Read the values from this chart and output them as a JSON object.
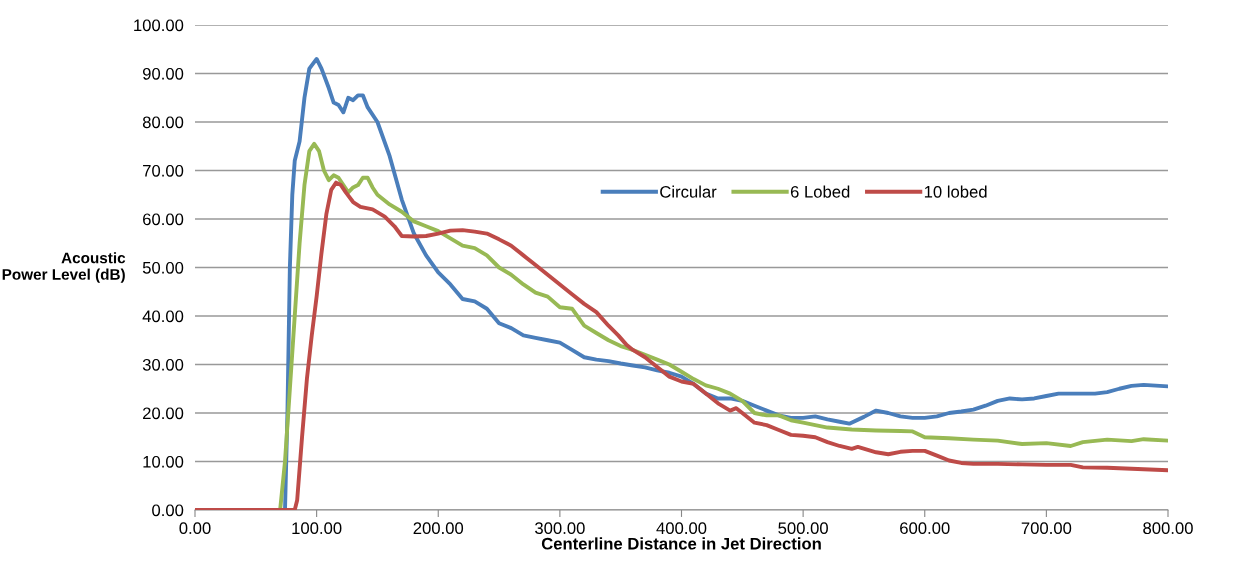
{
  "chart_data": {
    "type": "line",
    "xlabel": "Centerline Distance in Jet Direction",
    "ylabel": "Acoustic\nPower Level (dB)",
    "xlim": [
      0,
      800
    ],
    "ylim": [
      0,
      100
    ],
    "xticks": [
      {
        "value": 0,
        "label": "0.00"
      },
      {
        "value": 100,
        "label": "100.00"
      },
      {
        "value": 200,
        "label": "200.00"
      },
      {
        "value": 300,
        "label": "300.00"
      },
      {
        "value": 400,
        "label": "400.00"
      },
      {
        "value": 500,
        "label": "500.00"
      },
      {
        "value": 600,
        "label": "600.00"
      },
      {
        "value": 700,
        "label": "700.00"
      },
      {
        "value": 800,
        "label": "800.00"
      }
    ],
    "yticks": [
      {
        "value": 0,
        "label": "0.00"
      },
      {
        "value": 10,
        "label": "10.00"
      },
      {
        "value": 20,
        "label": "20.00"
      },
      {
        "value": 30,
        "label": "30.00"
      },
      {
        "value": 40,
        "label": "40.00"
      },
      {
        "value": 50,
        "label": "50.00"
      },
      {
        "value": 60,
        "label": "60.00"
      },
      {
        "value": 70,
        "label": "70.00"
      },
      {
        "value": 80,
        "label": "80.00"
      },
      {
        "value": 90,
        "label": "90.00"
      },
      {
        "value": 100,
        "label": "100.00"
      }
    ],
    "grid": "y",
    "legend": "top right",
    "marker": "none",
    "line_style": "solid",
    "series": [
      {
        "name": "Circular",
        "color": "#4a7ebb",
        "x": [
          0,
          74,
          76,
          78,
          80,
          82,
          86,
          90,
          94,
          100,
          104,
          110,
          114,
          118,
          122,
          126,
          130,
          134,
          138,
          142,
          150,
          160,
          170,
          180,
          190,
          200,
          210,
          220,
          230,
          240,
          250,
          260,
          270,
          280,
          290,
          300,
          310,
          320,
          330,
          340,
          350,
          360,
          370,
          380,
          390,
          400,
          410,
          420,
          430,
          440,
          450,
          460,
          470,
          480,
          490,
          500,
          510,
          520,
          530,
          538,
          550,
          560,
          570,
          580,
          590,
          600,
          610,
          620,
          630,
          640,
          650,
          660,
          670,
          680,
          690,
          700,
          710,
          720,
          730,
          740,
          750,
          760,
          770,
          780,
          800
        ],
        "values": [
          0,
          0,
          20,
          50,
          65,
          72,
          76,
          85,
          91,
          93,
          91,
          87,
          84,
          83.5,
          82,
          85,
          84.5,
          85.5,
          85.5,
          83,
          80,
          73,
          64,
          57,
          52.5,
          49,
          46.5,
          43.5,
          43,
          41.5,
          38.5,
          37.5,
          36,
          35.5,
          35,
          34.5,
          33,
          31.5,
          31,
          30.7,
          30.2,
          29.8,
          29.4,
          28.8,
          28.3,
          27.5,
          26,
          24,
          23,
          23,
          22.5,
          21.5,
          20.5,
          19.5,
          19,
          19,
          19.3,
          18.7,
          18.2,
          17.8,
          19.2,
          20.5,
          20,
          19.3,
          19,
          19,
          19.3,
          20,
          20.3,
          20.7,
          21.5,
          22.5,
          23,
          22.8,
          23,
          23.5,
          24,
          24,
          24,
          24,
          24.3,
          25,
          25.6,
          25.8,
          25.5
        ]
      },
      {
        "name": "6 Lobed",
        "color": "#98b954",
        "x": [
          0,
          70,
          74,
          78,
          82,
          86,
          90,
          94,
          98,
          102,
          106,
          110,
          114,
          118,
          122,
          126,
          130,
          134,
          138,
          142,
          146,
          150,
          160,
          170,
          180,
          190,
          200,
          210,
          220,
          230,
          240,
          250,
          260,
          270,
          280,
          290,
          300,
          310,
          320,
          330,
          340,
          350,
          360,
          370,
          380,
          390,
          400,
          410,
          420,
          430,
          440,
          450,
          460,
          470,
          480,
          490,
          500,
          510,
          520,
          530,
          540,
          560,
          580,
          590,
          600,
          620,
          640,
          660,
          680,
          700,
          720,
          730,
          750,
          770,
          780,
          800
        ],
        "values": [
          0,
          0,
          10,
          25,
          40,
          55,
          67,
          74,
          75.5,
          74,
          70,
          68,
          69,
          68.5,
          67,
          65.5,
          66.5,
          67,
          68.5,
          68.5,
          66.5,
          65,
          63,
          61.5,
          59.5,
          58.5,
          57.5,
          56,
          54.5,
          54,
          52.5,
          50,
          48.5,
          46.5,
          44.8,
          44,
          41.8,
          41.5,
          38,
          36.5,
          35,
          33.8,
          33,
          32,
          31,
          30,
          28.5,
          27,
          25.7,
          25,
          24,
          22.5,
          20,
          19.5,
          19.5,
          18.5,
          18,
          17.5,
          17,
          16.8,
          16.6,
          16.4,
          16.3,
          16.2,
          15,
          14.8,
          14.5,
          14.3,
          13.6,
          13.8,
          13.2,
          14,
          14.5,
          14.2,
          14.6,
          14.3
        ]
      },
      {
        "name": "10 lobed",
        "color": "#be4b48",
        "x": [
          0,
          82,
          84,
          88,
          92,
          96,
          100,
          104,
          108,
          112,
          116,
          120,
          124,
          130,
          136,
          146,
          156,
          164,
          170,
          180,
          190,
          200,
          210,
          220,
          230,
          240,
          250,
          260,
          270,
          280,
          290,
          300,
          310,
          320,
          330,
          340,
          348,
          355,
          360,
          370,
          380,
          390,
          400,
          410,
          420,
          430,
          440,
          445,
          450,
          460,
          470,
          480,
          490,
          500,
          510,
          520,
          530,
          540,
          545,
          560,
          570,
          580,
          590,
          600,
          610,
          620,
          630,
          640,
          660,
          680,
          700,
          720,
          730,
          750,
          770,
          800
        ],
        "values": [
          0,
          0,
          2,
          15,
          27,
          36,
          44,
          53,
          61,
          66,
          67.5,
          67,
          65.5,
          63.5,
          62.5,
          62,
          60.5,
          58.5,
          56.5,
          56.4,
          56.5,
          57,
          57.6,
          57.7,
          57.4,
          57,
          55.8,
          54.5,
          52.5,
          50.5,
          48.5,
          46.5,
          44.5,
          42.5,
          40.8,
          38,
          36,
          34,
          33,
          31.5,
          29.5,
          27.5,
          26.5,
          26,
          24,
          22,
          20.5,
          21,
          20,
          18,
          17.5,
          16.5,
          15.5,
          15.3,
          15,
          14,
          13.2,
          12.6,
          13,
          11.9,
          11.5,
          12,
          12.2,
          12.2,
          11.2,
          10.2,
          9.7,
          9.5,
          9.5,
          9.4,
          9.3,
          9.3,
          8.8,
          8.7,
          8.5,
          8.2
        ]
      }
    ]
  }
}
